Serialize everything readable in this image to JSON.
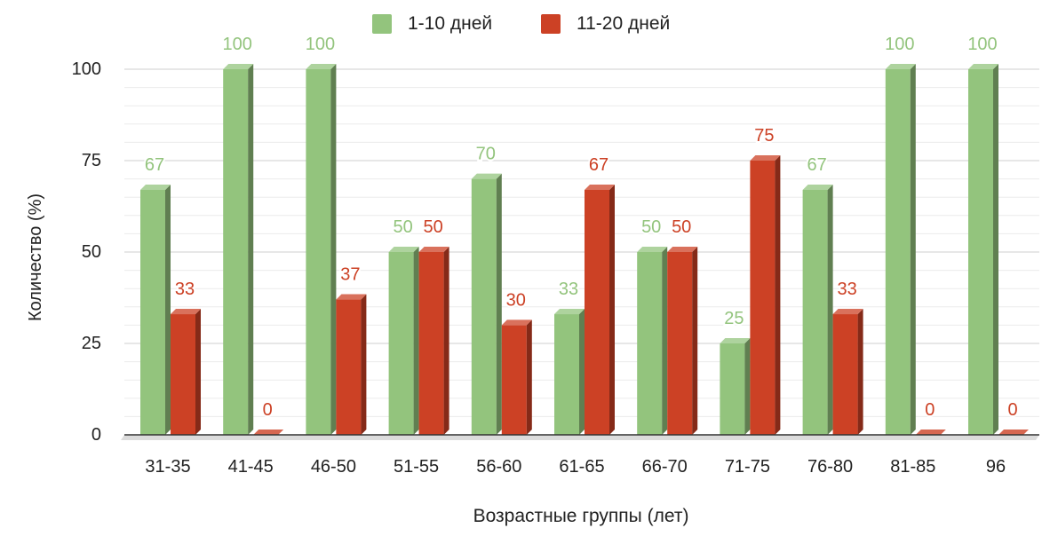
{
  "chart_data": {
    "type": "bar",
    "title": "",
    "xlabel": "Возрастные группы (лет)",
    "ylabel": "Количество (%)",
    "ylim": [
      0,
      100
    ],
    "yticks": [
      0,
      25,
      50,
      75,
      100
    ],
    "categories": [
      "31-35",
      "41-45",
      "46-50",
      "51-55",
      "56-60",
      "61-65",
      "66-70",
      "71-75",
      "76-80",
      "81-85",
      "96"
    ],
    "series": [
      {
        "name": "1-10 дней",
        "color": "#93c47d",
        "label_color": "#93c47d",
        "values": [
          67,
          100,
          100,
          50,
          70,
          33,
          50,
          25,
          67,
          100,
          100
        ]
      },
      {
        "name": "11-20 дней",
        "color": "#cc4125",
        "label_color": "#cc4125",
        "values": [
          33,
          0,
          37,
          50,
          30,
          67,
          50,
          75,
          33,
          0,
          0
        ]
      }
    ],
    "legend_position": "top",
    "grid": true,
    "style": "3d-bars"
  }
}
